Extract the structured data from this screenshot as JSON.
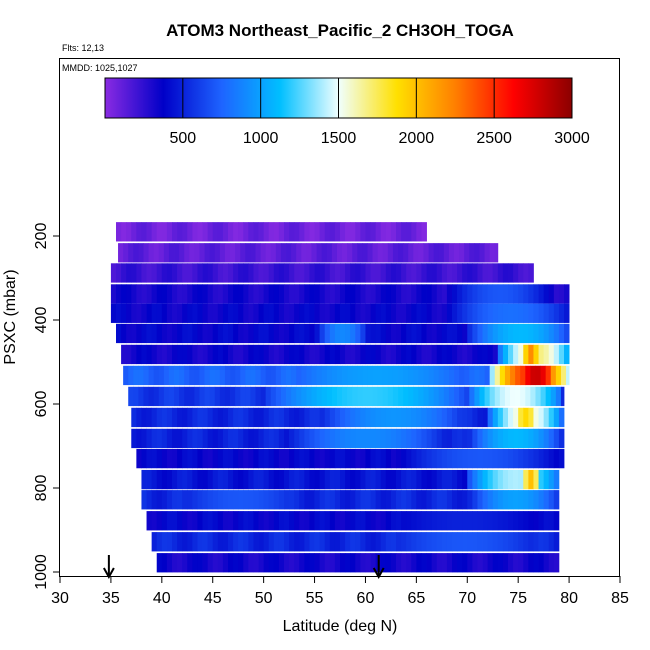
{
  "chart_data": {
    "type": "heatmap",
    "title": "ATOM3 Northeast_Pacific_2 CH3OH_TOGA",
    "annotations": {
      "flights": "Flts: 12,13",
      "dates": "MMDD: 1025,1027"
    },
    "xlabel": "Latitude (deg N)",
    "ylabel": "PSXC (mbar)",
    "xlim": [
      30,
      85
    ],
    "ylim": [
      1000,
      0
    ],
    "x_ticks": [
      30,
      35,
      40,
      45,
      50,
      55,
      60,
      65,
      70,
      75,
      80,
      85
    ],
    "y_ticks": [
      200,
      400,
      600,
      800,
      1000
    ],
    "colorbar": {
      "min": 0,
      "max": 3000,
      "ticks": [
        500,
        1000,
        1500,
        2000,
        2500,
        3000
      ],
      "colors": [
        "#8a2be2",
        "#0000c8",
        "#1e64ff",
        "#00bfff",
        "#f0ffff",
        "#ffe000",
        "#ff7f00",
        "#ff0000",
        "#8b0000"
      ]
    },
    "arrows": [
      34.8,
      61.3
    ],
    "rows": [
      {
        "p": 190,
        "lat0": 35.5,
        "lat1": 66.0,
        "base": 80,
        "spots": []
      },
      {
        "p": 240,
        "lat0": 35.7,
        "lat1": 73.0,
        "base": 120,
        "spots": []
      },
      {
        "p": 288,
        "lat0": 35.0,
        "lat1": 76.5,
        "base": 220,
        "spots": []
      },
      {
        "p": 338,
        "lat0": 35.0,
        "lat1": 80.0,
        "base": 320,
        "spots": [
          [
            68,
            78,
            700
          ]
        ]
      },
      {
        "p": 384,
        "lat0": 35.0,
        "lat1": 80.0,
        "base": 360,
        "spots": [
          [
            68,
            80,
            800
          ]
        ]
      },
      {
        "p": 432,
        "lat0": 35.5,
        "lat1": 80.0,
        "base": 380,
        "spots": [
          [
            55,
            60,
            900
          ],
          [
            70,
            80,
            1100
          ]
        ]
      },
      {
        "p": 482,
        "lat0": 36.0,
        "lat1": 80.0,
        "base": 340,
        "spots": [
          [
            73,
            80,
            1700
          ],
          [
            75,
            77,
            2200
          ]
        ]
      },
      {
        "p": 532,
        "lat0": 36.2,
        "lat1": 80.0,
        "base": 750,
        "spots": [
          [
            50,
            72,
            1000
          ],
          [
            72,
            80,
            2500
          ],
          [
            74,
            79,
            2800
          ]
        ]
      },
      {
        "p": 582,
        "lat0": 36.7,
        "lat1": 79.5,
        "base": 580,
        "spots": [
          [
            50,
            70,
            1200
          ],
          [
            70,
            79,
            1500
          ]
        ]
      },
      {
        "p": 632,
        "lat0": 37.0,
        "lat1": 79.5,
        "base": 520,
        "spots": [
          [
            55,
            70,
            950
          ],
          [
            72,
            79,
            1600
          ],
          [
            74,
            77,
            1900
          ]
        ]
      },
      {
        "p": 682,
        "lat0": 37.0,
        "lat1": 79.5,
        "base": 500,
        "spots": [
          [
            52,
            68,
            900
          ],
          [
            70,
            79,
            1100
          ]
        ]
      },
      {
        "p": 730,
        "lat0": 37.5,
        "lat1": 79.5,
        "base": 380,
        "spots": [
          [
            63,
            79,
            700
          ]
        ]
      },
      {
        "p": 780,
        "lat0": 38.0,
        "lat1": 79.0,
        "base": 450,
        "spots": [
          [
            70,
            79,
            1400
          ],
          [
            75,
            77,
            2000
          ]
        ]
      },
      {
        "p": 828,
        "lat0": 38.0,
        "lat1": 79.0,
        "base": 520,
        "spots": [
          [
            40,
            55,
            700
          ],
          [
            70,
            79,
            1000
          ]
        ]
      },
      {
        "p": 878,
        "lat0": 38.5,
        "lat1": 79.0,
        "base": 380,
        "spots": [
          [
            60,
            79,
            500
          ]
        ]
      },
      {
        "p": 928,
        "lat0": 39.0,
        "lat1": 79.0,
        "base": 520,
        "spots": [
          [
            60,
            79,
            700
          ]
        ]
      },
      {
        "p": 978,
        "lat0": 39.5,
        "lat1": 79.0,
        "base": 330,
        "spots": []
      }
    ]
  }
}
